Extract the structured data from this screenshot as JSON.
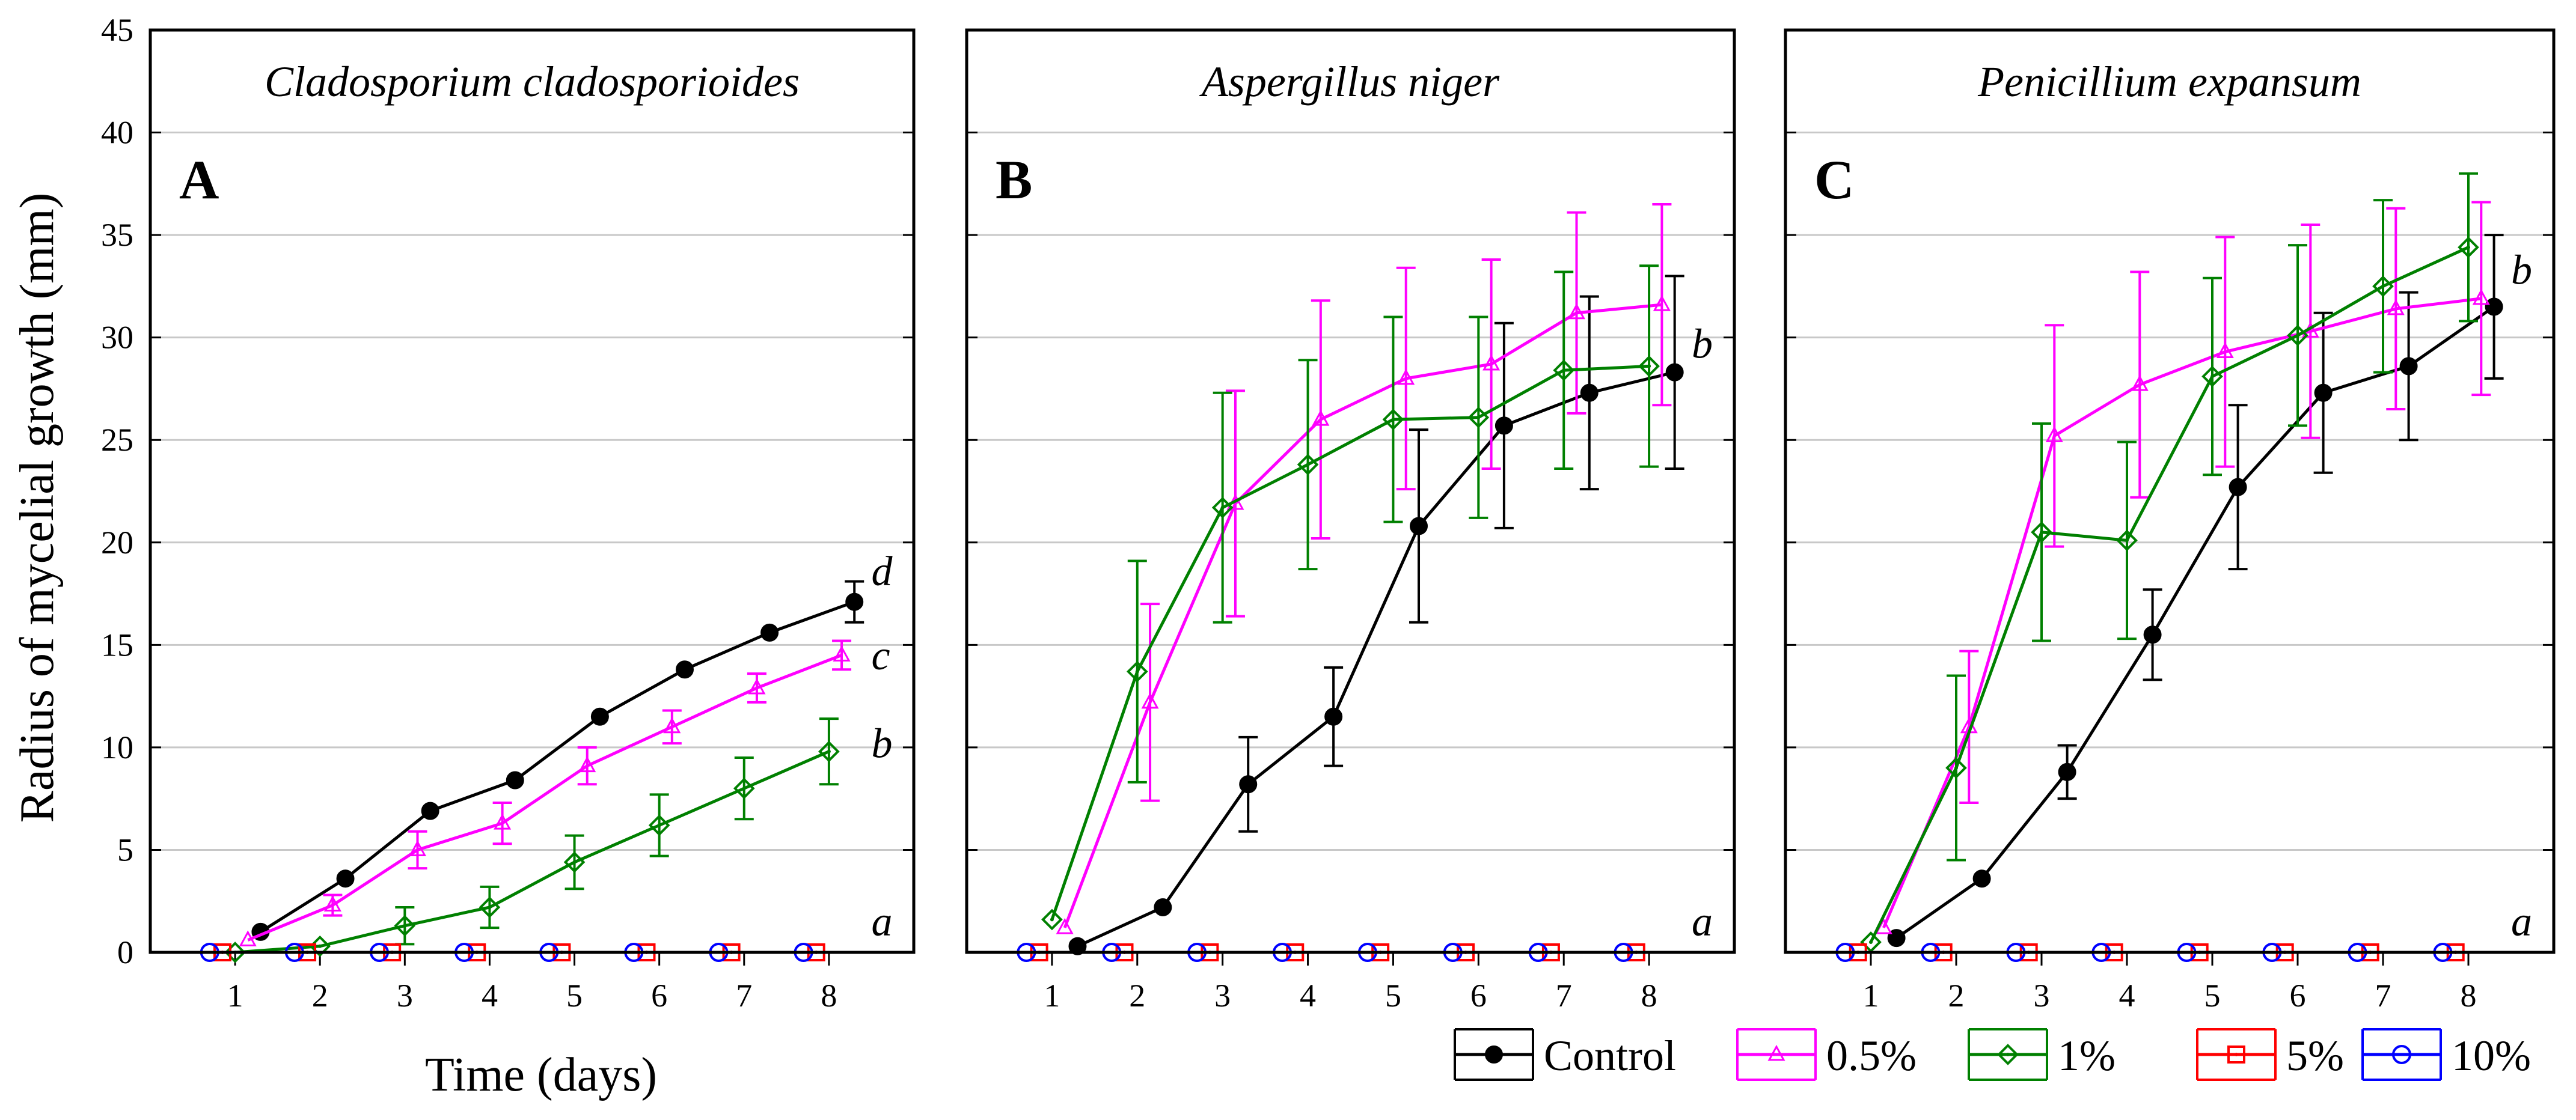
{
  "chart_data": {
    "type": "line",
    "ylabel": "Radius of mycelial growth (mm)",
    "xlabel": "Time (days)",
    "ylim": [
      0,
      45
    ],
    "yticks": [
      "0",
      "5",
      "10",
      "15",
      "20",
      "25",
      "30",
      "35",
      "40",
      "45"
    ],
    "xlim": [
      0,
      9
    ],
    "xticks": [
      "1",
      "2",
      "3",
      "4",
      "5",
      "6",
      "7",
      "8"
    ],
    "grid": "horizontal",
    "legend": {
      "position": "bottom-right",
      "entries": [
        "Control",
        "0.5%",
        "1%",
        "5%",
        "10%"
      ]
    },
    "colors": {
      "Control": "#000000",
      "0.5%": "#ff00ff",
      "1%": "#008000",
      "5%": "#ff0000",
      "10%": "#0000ff"
    },
    "panels": [
      {
        "letter": "A",
        "species": "Cladosporium cladosporioides",
        "series": [
          {
            "name": "Control",
            "x": [
              1.3,
              2.3,
              3.3,
              4.3,
              5.3,
              6.3,
              7.3,
              8.3
            ],
            "y": [
              1.0,
              3.6,
              6.9,
              8.4,
              11.5,
              13.8,
              15.6,
              17.1
            ],
            "err": [
              0,
              0,
              0,
              0,
              0,
              0,
              0,
              1.0
            ]
          },
          {
            "name": "0.5%",
            "x": [
              1.15,
              2.15,
              3.15,
              4.15,
              5.15,
              6.15,
              7.15,
              8.15
            ],
            "y": [
              0.6,
              2.3,
              5.0,
              6.3,
              9.1,
              11.0,
              12.9,
              14.5
            ],
            "err": [
              0,
              0.5,
              0.9,
              1.0,
              0.9,
              0.8,
              0.7,
              0.7
            ]
          },
          {
            "name": "1%",
            "x": [
              1.0,
              2.0,
              3.0,
              4.0,
              5.0,
              6.0,
              7.0,
              8.0
            ],
            "y": [
              0,
              0.3,
              1.3,
              2.2,
              4.4,
              6.2,
              8.0,
              9.8
            ],
            "err": [
              0,
              0,
              0.9,
              1.0,
              1.3,
              1.5,
              1.5,
              1.6
            ]
          },
          {
            "name": "5%",
            "x": [
              0.85,
              1.85,
              2.85,
              3.85,
              4.85,
              5.85,
              6.85,
              7.85
            ],
            "y": [
              0,
              0,
              0,
              0,
              0,
              0,
              0,
              0
            ],
            "err": [
              0,
              0,
              0,
              0,
              0,
              0,
              0,
              0
            ]
          },
          {
            "name": "10%",
            "x": [
              0.7,
              1.7,
              2.7,
              3.7,
              4.7,
              5.7,
              6.7,
              7.7
            ],
            "y": [
              0,
              0,
              0,
              0,
              0,
              0,
              0,
              0
            ],
            "err": [
              0,
              0,
              0,
              0,
              0,
              0,
              0,
              0
            ]
          }
        ],
        "annotations": [
          {
            "text": "d",
            "x": 8.5,
            "y": 18.5
          },
          {
            "text": "c",
            "x": 8.5,
            "y": 14.4
          },
          {
            "text": "b",
            "x": 8.5,
            "y": 10.1
          },
          {
            "text": "a",
            "x": 8.5,
            "y": 1.4
          }
        ]
      },
      {
        "letter": "B",
        "species": "Aspergillus niger",
        "series": [
          {
            "name": "Control",
            "x": [
              1.3,
              2.3,
              3.3,
              4.3,
              5.3,
              6.3,
              7.3,
              8.3
            ],
            "y": [
              0.3,
              2.2,
              8.2,
              11.5,
              20.8,
              25.7,
              27.3,
              28.3
            ],
            "err": [
              0,
              0,
              2.3,
              2.4,
              4.7,
              5.0,
              4.7,
              4.7
            ]
          },
          {
            "name": "0.5%",
            "x": [
              1.15,
              2.15,
              3.15,
              4.15,
              5.15,
              6.15,
              7.15,
              8.15
            ],
            "y": [
              1.2,
              12.2,
              21.9,
              26.0,
              28.0,
              28.7,
              31.2,
              31.6
            ],
            "err": [
              0,
              4.8,
              5.5,
              5.8,
              5.4,
              5.1,
              4.9,
              4.9
            ]
          },
          {
            "name": "1%",
            "x": [
              1.0,
              2.0,
              3.0,
              4.0,
              5.0,
              6.0,
              7.0,
              8.0
            ],
            "y": [
              1.6,
              13.7,
              21.7,
              23.8,
              26.0,
              26.1,
              28.4,
              28.6
            ],
            "err": [
              0,
              5.4,
              5.6,
              5.1,
              5.0,
              4.9,
              4.8,
              4.9
            ]
          },
          {
            "name": "5%",
            "x": [
              0.85,
              1.85,
              2.85,
              3.85,
              4.85,
              5.85,
              6.85,
              7.85
            ],
            "y": [
              0,
              0,
              0,
              0,
              0,
              0,
              0,
              0
            ],
            "err": [
              0,
              0,
              0,
              0,
              0,
              0,
              0,
              0
            ]
          },
          {
            "name": "10%",
            "x": [
              0.7,
              1.7,
              2.7,
              3.7,
              4.7,
              5.7,
              6.7,
              7.7
            ],
            "y": [
              0,
              0,
              0,
              0,
              0,
              0,
              0,
              0
            ],
            "err": [
              0,
              0,
              0,
              0,
              0,
              0,
              0,
              0
            ]
          }
        ],
        "annotations": [
          {
            "text": "b",
            "x": 8.5,
            "y": 29.6
          },
          {
            "text": "a",
            "x": 8.5,
            "y": 1.4
          }
        ]
      },
      {
        "letter": "C",
        "species": "Penicillium expansum",
        "series": [
          {
            "name": "Control",
            "x": [
              1.3,
              2.3,
              3.3,
              4.3,
              5.3,
              6.3,
              7.3,
              8.3
            ],
            "y": [
              0.7,
              3.6,
              8.8,
              15.5,
              22.7,
              27.3,
              28.6,
              31.5
            ],
            "err": [
              0,
              0,
              1.3,
              2.2,
              4.0,
              3.9,
              3.6,
              3.5
            ]
          },
          {
            "name": "0.5%",
            "x": [
              1.15,
              2.15,
              3.15,
              4.15,
              5.15,
              6.15,
              7.15,
              8.15
            ],
            "y": [
              1.2,
              11.0,
              25.2,
              27.7,
              29.3,
              30.3,
              31.4,
              31.9
            ],
            "err": [
              0,
              3.7,
              5.4,
              5.5,
              5.6,
              5.2,
              4.9,
              4.7
            ]
          },
          {
            "name": "1%",
            "x": [
              1.0,
              2.0,
              3.0,
              4.0,
              5.0,
              6.0,
              7.0,
              8.0
            ],
            "y": [
              0.5,
              9.0,
              20.5,
              20.1,
              28.1,
              30.1,
              32.5,
              34.4
            ],
            "err": [
              0,
              4.5,
              5.3,
              4.8,
              4.8,
              4.4,
              4.2,
              3.6
            ]
          },
          {
            "name": "5%",
            "x": [
              0.85,
              1.85,
              2.85,
              3.85,
              4.85,
              5.85,
              6.85,
              7.85
            ],
            "y": [
              0,
              0,
              0,
              0,
              0,
              0,
              0,
              0
            ],
            "err": [
              0,
              0,
              0,
              0,
              0,
              0,
              0,
              0
            ]
          },
          {
            "name": "10%",
            "x": [
              0.7,
              1.7,
              2.7,
              3.7,
              4.7,
              5.7,
              6.7,
              7.7
            ],
            "y": [
              0,
              0,
              0,
              0,
              0,
              0,
              0,
              0
            ],
            "err": [
              0,
              0,
              0,
              0,
              0,
              0,
              0,
              0
            ]
          }
        ],
        "annotations": [
          {
            "text": "b",
            "x": 8.5,
            "y": 33.2
          },
          {
            "text": "a",
            "x": 8.5,
            "y": 1.4
          }
        ]
      }
    ]
  }
}
